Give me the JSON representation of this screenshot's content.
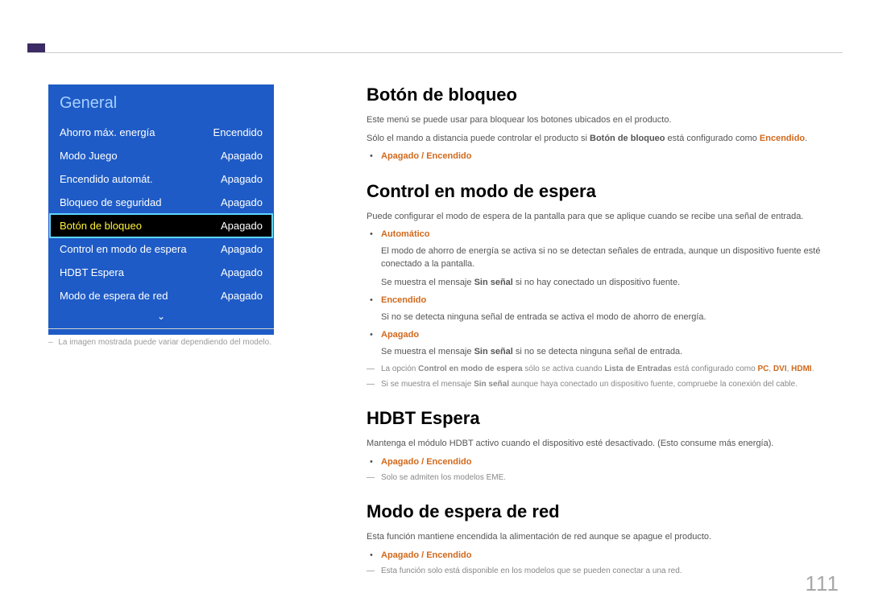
{
  "page_number": "111",
  "menu": {
    "title": "General",
    "items": [
      {
        "label": "Ahorro máx. energía",
        "value": "Encendido",
        "selected": false
      },
      {
        "label": "Modo Juego",
        "value": "Apagado",
        "selected": false
      },
      {
        "label": "Encendido automát.",
        "value": "Apagado",
        "selected": false
      },
      {
        "label": "Bloqueo de seguridad",
        "value": "Apagado",
        "selected": false
      },
      {
        "label": "Botón de bloqueo",
        "value": "Apagado",
        "selected": true
      },
      {
        "label": "Control en modo de espera",
        "value": "Apagado",
        "selected": false
      },
      {
        "label": "HDBT Espera",
        "value": "Apagado",
        "selected": false
      },
      {
        "label": "Modo de espera de red",
        "value": "Apagado",
        "selected": false
      }
    ]
  },
  "panel_caption": "La imagen mostrada puede variar dependiendo del modelo.",
  "sections": {
    "s1": {
      "title": "Botón de bloqueo",
      "p1": "Este menú se puede usar para bloquear los botones ubicados en el producto.",
      "p2a": "Sólo el mando a distancia puede controlar el producto si ",
      "p2b": "Botón de bloqueo",
      "p2c": " está configurado como ",
      "p2d": "Encendido",
      "p2e": ".",
      "opt": "Apagado / Encendido"
    },
    "s2": {
      "title": "Control en modo de espera",
      "p1": "Puede configurar el modo de espera de la pantalla para que se aplique cuando se recibe una señal de entrada.",
      "auto_label": "Automático",
      "auto_t1": "El modo de ahorro de energía se activa si no se detectan señales de entrada, aunque un dispositivo fuente esté conectado a la pantalla.",
      "auto_t2a": "Se muestra el mensaje ",
      "auto_t2b": "Sin señal",
      "auto_t2c": " si no hay conectado un dispositivo fuente.",
      "on_label": "Encendido",
      "on_t1": "Si no se detecta ninguna señal de entrada se activa el modo de ahorro de energía.",
      "off_label": "Apagado",
      "off_t1a": "Se muestra el mensaje ",
      "off_t1b": "Sin señal",
      "off_t1c": " si no se detecta ninguna señal de entrada.",
      "note1a": "La opción ",
      "note1b": "Control en modo de espera",
      "note1c": " sólo se activa cuando ",
      "note1d": "Lista de Entradas",
      "note1e": " está configurado como ",
      "note1f": "PC",
      "note1g": ", ",
      "note1h": "DVI",
      "note1i": ", ",
      "note1j": "HDMI",
      "note1k": ".",
      "note2a": "Si se muestra el mensaje ",
      "note2b": "Sin señal",
      "note2c": " aunque haya conectado un dispositivo fuente, compruebe la conexión del cable."
    },
    "s3": {
      "title": "HDBT Espera",
      "p1": "Mantenga el módulo HDBT activo cuando el dispositivo esté desactivado. (Esto consume más energía).",
      "opt": "Apagado / Encendido",
      "note": "Solo se admiten los modelos EME."
    },
    "s4": {
      "title": "Modo de espera de red",
      "p1": "Esta función mantiene encendida la alimentación de red aunque se apague el producto.",
      "opt": "Apagado / Encendido",
      "note": "Esta función solo está disponible en los modelos que se pueden conectar a una red."
    }
  }
}
